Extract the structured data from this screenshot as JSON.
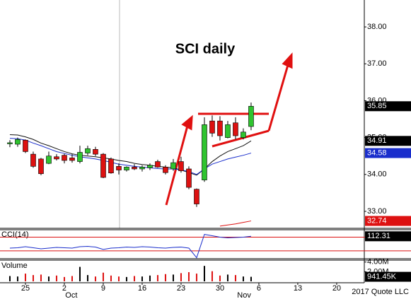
{
  "chart_data": [
    {
      "type": "candlestick",
      "title": "SCI daily",
      "x": [
        -2,
        -1,
        0,
        1,
        2,
        3,
        4,
        5,
        6,
        7,
        8,
        9,
        10,
        11,
        12,
        13,
        14,
        15,
        16,
        17,
        18,
        19,
        20,
        21,
        22,
        23,
        24,
        25,
        26,
        27,
        28,
        29
      ],
      "open": [
        34.83,
        34.82,
        34.93,
        34.55,
        34.42,
        34.3,
        34.48,
        34.52,
        34.45,
        34.35,
        34.58,
        34.68,
        34.55,
        34.42,
        34.22,
        34.12,
        34.2,
        34.15,
        34.18,
        34.35,
        34.2,
        34.15,
        34.35,
        34.15,
        33.6,
        33.85,
        35.45,
        35.45,
        35.0,
        35.4,
        35.0,
        35.3
      ],
      "high": [
        34.93,
        35.0,
        34.95,
        34.62,
        34.45,
        34.62,
        34.55,
        34.56,
        34.55,
        34.78,
        34.78,
        34.75,
        34.58,
        34.46,
        34.3,
        34.22,
        34.28,
        34.25,
        34.3,
        34.4,
        34.25,
        34.42,
        34.48,
        34.22,
        33.62,
        35.55,
        35.6,
        35.58,
        35.45,
        35.55,
        35.25,
        35.95
      ],
      "low": [
        34.74,
        34.75,
        34.58,
        34.18,
        33.98,
        34.28,
        34.38,
        34.3,
        34.32,
        34.3,
        34.52,
        34.5,
        33.9,
        34.02,
        34.0,
        34.08,
        34.12,
        34.08,
        34.12,
        34.18,
        34.0,
        34.1,
        34.05,
        33.6,
        33.12,
        33.8,
        35.02,
        34.92,
        34.98,
        34.95,
        34.95,
        35.2
      ],
      "close": [
        34.86,
        34.95,
        34.62,
        34.22,
        34.02,
        34.5,
        34.42,
        34.38,
        34.38,
        34.6,
        34.7,
        34.55,
        33.92,
        34.04,
        34.12,
        34.2,
        34.15,
        34.2,
        34.25,
        34.2,
        34.05,
        34.32,
        34.1,
        33.65,
        33.2,
        35.35,
        35.12,
        35.05,
        35.35,
        35.05,
        35.15,
        35.85
      ],
      "up_color": "#2fc42f",
      "down_color": "#dd1111",
      "series": [
        {
          "color": "#111111",
          "values": [
            35.08,
            35.07,
            35.02,
            34.95,
            34.85,
            34.78,
            34.7,
            34.62,
            34.56,
            34.52,
            34.5,
            34.48,
            34.45,
            34.42,
            34.38,
            34.35,
            34.3,
            34.27,
            34.25,
            34.22,
            34.2,
            34.18,
            34.12,
            34.05,
            33.98,
            34.15,
            34.35,
            34.5,
            34.62,
            34.7,
            34.78,
            34.91
          ]
        },
        {
          "color": "#1a2ecc",
          "values": [
            34.98,
            34.97,
            34.93,
            34.85,
            34.78,
            34.7,
            34.62,
            34.57,
            34.52,
            34.48,
            34.45,
            34.42,
            34.38,
            34.33,
            34.28,
            34.25,
            34.22,
            34.2,
            34.18,
            34.16,
            34.15,
            34.15,
            34.12,
            34.08,
            34.0,
            34.15,
            34.28,
            34.35,
            34.42,
            34.47,
            34.52,
            34.58
          ]
        },
        {
          "color": "#dd1111",
          "values": [
            null,
            null,
            null,
            null,
            null,
            null,
            null,
            null,
            null,
            null,
            null,
            null,
            null,
            null,
            null,
            null,
            null,
            null,
            null,
            null,
            null,
            null,
            null,
            null,
            null,
            null,
            null,
            32.6,
            32.63,
            32.66,
            32.7,
            32.74
          ]
        }
      ],
      "tags": [
        {
          "value": 35.85,
          "color": "#000000"
        },
        {
          "value": 34.91,
          "color": "#000000"
        },
        {
          "value": 34.58,
          "color": "#1a2ecc"
        },
        {
          "value": 32.74,
          "color": "#dd1111"
        }
      ],
      "ylim": [
        32.54,
        38.73
      ],
      "yticks": [
        {
          "value": 38,
          "label": "38.00"
        },
        {
          "value": 37,
          "label": "37.00"
        },
        {
          "value": 36,
          "label": "36.00"
        },
        {
          "value": 35,
          "label": "35.00"
        },
        {
          "value": 34,
          "label": "34.00"
        },
        {
          "value": 33,
          "label": "33.00"
        }
      ],
      "xlim": [
        -3.27,
        43.55
      ],
      "xticks": [
        {
          "value": 0,
          "label": "25"
        },
        {
          "value": 5,
          "label": "2"
        },
        {
          "value": 10,
          "label": "9"
        },
        {
          "value": 15,
          "label": "16"
        },
        {
          "value": 20,
          "label": "23"
        },
        {
          "value": 25,
          "label": "30"
        },
        {
          "value": 30,
          "label": "6"
        },
        {
          "value": 35,
          "label": "13"
        },
        {
          "value": 40,
          "label": "20"
        }
      ],
      "month_labels": [
        {
          "value": 5.9,
          "label": "Oct"
        },
        {
          "value": 28.1,
          "label": "Nov"
        }
      ],
      "copyright": "2017 Quote LLC"
    },
    {
      "type": "line",
      "title": "CCI(14)",
      "color": "#1a2ecc",
      "values": [
        -60,
        -55,
        -40,
        -55,
        -70,
        -60,
        -50,
        -55,
        -60,
        -40,
        -35,
        -45,
        -80,
        -60,
        -55,
        -45,
        -50,
        -40,
        -45,
        -55,
        -60,
        -50,
        -45,
        -60,
        -200,
        140,
        120,
        100,
        90,
        95,
        100,
        112.31
      ],
      "reference_lines": [
        100,
        -100
      ],
      "reference_color": "#dd1111",
      "tags": [
        {
          "value": 112.31,
          "color": "#000000"
        }
      ],
      "ylim": [
        -215,
        208
      ]
    },
    {
      "type": "bar",
      "title": "Volume",
      "values": [
        1100000,
        1000000,
        1600000,
        1300000,
        1400000,
        1000000,
        1200000,
        900000,
        1100000,
        3000000,
        1300000,
        1000000,
        1800000,
        1200000,
        1000000,
        900000,
        1100000,
        1000000,
        1200000,
        1300000,
        1500000,
        1400000,
        1700000,
        1900000,
        1600000,
        3200000,
        2100000,
        1200000,
        1400000,
        1300000,
        1000000,
        941450
      ],
      "tags": [
        {
          "value": 941450,
          "label": "941.45K",
          "color": "#000000"
        }
      ],
      "ylim": [
        0,
        4400000
      ],
      "yticks": [
        {
          "value": 4000000,
          "label": "4.00M"
        },
        {
          "value": 2000000,
          "label": "2.00M"
        }
      ]
    }
  ]
}
